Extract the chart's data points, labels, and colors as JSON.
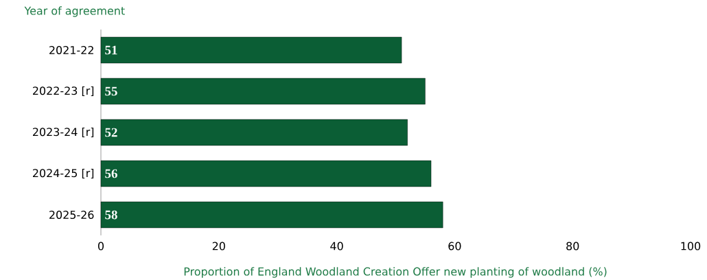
{
  "chart_data": {
    "type": "bar",
    "orientation": "horizontal",
    "ylabel": "Year of agreement",
    "xlabel": "Proportion of England Woodland Creation Offer new planting of woodland (%)",
    "categories": [
      "2021-22",
      "2022-23 [r]",
      "2023-24 [r]",
      "2024-25 [r]",
      "2025-26"
    ],
    "values": [
      51,
      55,
      52,
      56,
      58
    ],
    "color": "#0b5e35",
    "data_labels": true,
    "xlim": [
      0,
      100
    ],
    "xticks": [
      0,
      20,
      40,
      60,
      80,
      100
    ]
  }
}
